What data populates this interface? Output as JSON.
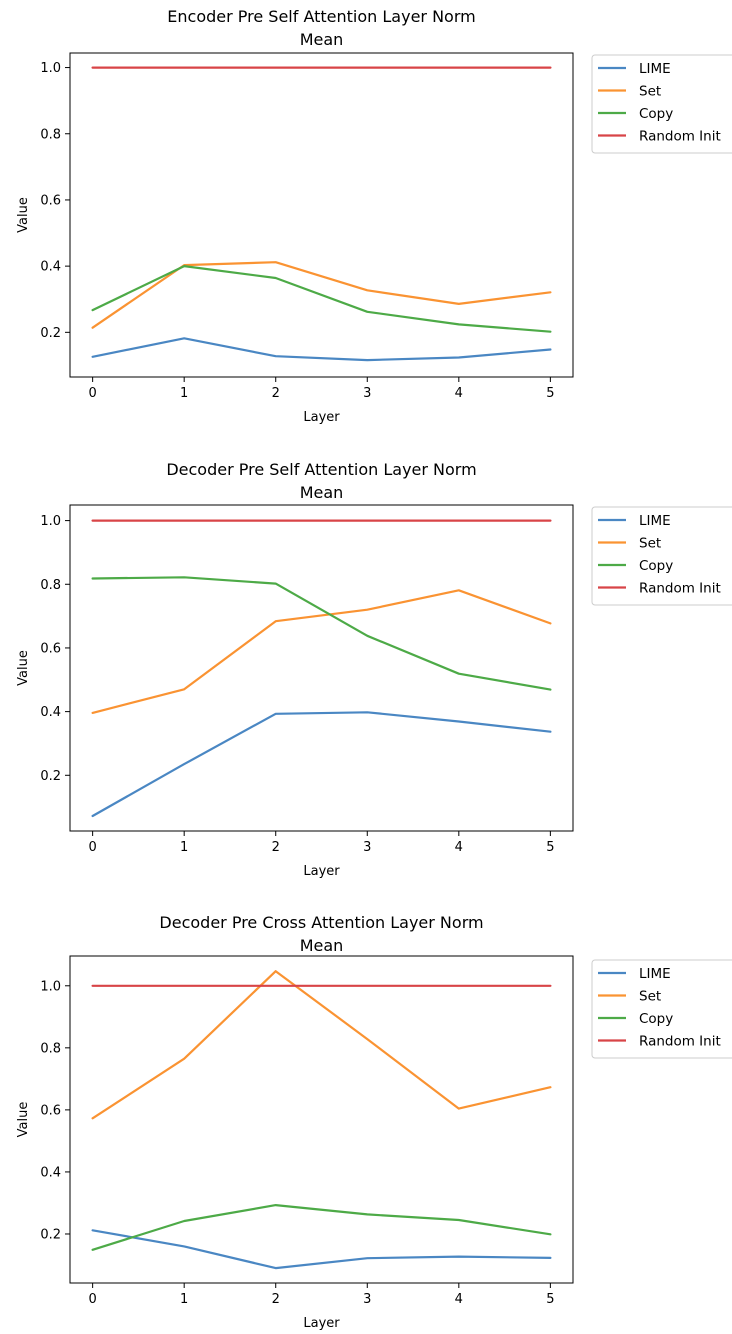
{
  "chart_data": [
    {
      "type": "line",
      "title": "Encoder Pre Self Attention Layer Norm\nMean",
      "xlabel": "Layer",
      "ylabel": "Value",
      "x": [
        0,
        1,
        2,
        3,
        4,
        5
      ],
      "xticks": [
        0,
        1,
        2,
        3,
        4,
        5
      ],
      "yticks": [
        0.2,
        0.4,
        0.6,
        0.8,
        1.0
      ],
      "ytick_labels": [
        "0.2",
        "0.4",
        "0.6",
        "0.8",
        "1.0"
      ],
      "ylim": [
        0.065,
        1.044
      ],
      "legend_position": "outside-upper-right",
      "series": [
        {
          "name": "LIME",
          "color": "#4a87c3",
          "values": [
            0.126,
            0.182,
            0.128,
            0.116,
            0.124,
            0.148
          ]
        },
        {
          "name": "Set",
          "color": "#fa9332",
          "values": [
            0.214,
            0.403,
            0.412,
            0.327,
            0.286,
            0.321
          ]
        },
        {
          "name": "Copy",
          "color": "#4daa47",
          "values": [
            0.267,
            0.4,
            0.364,
            0.262,
            0.224,
            0.202
          ]
        },
        {
          "name": "Random Init",
          "color": "#d84447",
          "values": [
            1.0,
            1.0,
            1.0,
            1.0,
            1.0,
            1.0
          ]
        }
      ]
    },
    {
      "type": "line",
      "title": "Decoder Pre Self Attention Layer Norm\nMean",
      "xlabel": "Layer",
      "ylabel": "Value",
      "x": [
        0,
        1,
        2,
        3,
        4,
        5
      ],
      "xticks": [
        0,
        1,
        2,
        3,
        4,
        5
      ],
      "yticks": [
        0.2,
        0.4,
        0.6,
        0.8,
        1.0
      ],
      "ytick_labels": [
        "0.2",
        "0.4",
        "0.6",
        "0.8",
        "1.0"
      ],
      "ylim": [
        0.025,
        1.049
      ],
      "legend_position": "outside-upper-right",
      "series": [
        {
          "name": "LIME",
          "color": "#4a87c3",
          "values": [
            0.072,
            0.235,
            0.393,
            0.398,
            0.369,
            0.337
          ]
        },
        {
          "name": "Set",
          "color": "#fa9332",
          "values": [
            0.396,
            0.47,
            0.684,
            0.72,
            0.781,
            0.677
          ]
        },
        {
          "name": "Copy",
          "color": "#4daa47",
          "values": [
            0.818,
            0.822,
            0.802,
            0.638,
            0.519,
            0.469
          ]
        },
        {
          "name": "Random Init",
          "color": "#d84447",
          "values": [
            1.0,
            1.0,
            1.0,
            1.0,
            1.0,
            1.0
          ]
        }
      ]
    },
    {
      "type": "line",
      "title": "Decoder Pre Cross Attention Layer Norm\nMean",
      "xlabel": "Layer",
      "ylabel": "Value",
      "x": [
        0,
        1,
        2,
        3,
        4,
        5
      ],
      "xticks": [
        0,
        1,
        2,
        3,
        4,
        5
      ],
      "yticks": [
        0.2,
        0.4,
        0.6,
        0.8,
        1.0
      ],
      "ytick_labels": [
        "0.2",
        "0.4",
        "0.6",
        "0.8",
        "1.0"
      ],
      "ylim": [
        0.042,
        1.096
      ],
      "legend_position": "outside-upper-right",
      "series": [
        {
          "name": "LIME",
          "color": "#4a87c3",
          "values": [
            0.212,
            0.16,
            0.09,
            0.122,
            0.127,
            0.123
          ]
        },
        {
          "name": "Set",
          "color": "#fa9332",
          "values": [
            0.573,
            0.765,
            1.047,
            0.828,
            0.604,
            0.673
          ]
        },
        {
          "name": "Copy",
          "color": "#4daa47",
          "values": [
            0.149,
            0.242,
            0.293,
            0.263,
            0.245,
            0.199
          ]
        },
        {
          "name": "Random Init",
          "color": "#d84447",
          "values": [
            1.0,
            1.0,
            1.0,
            1.0,
            1.0,
            1.0
          ]
        }
      ]
    }
  ]
}
